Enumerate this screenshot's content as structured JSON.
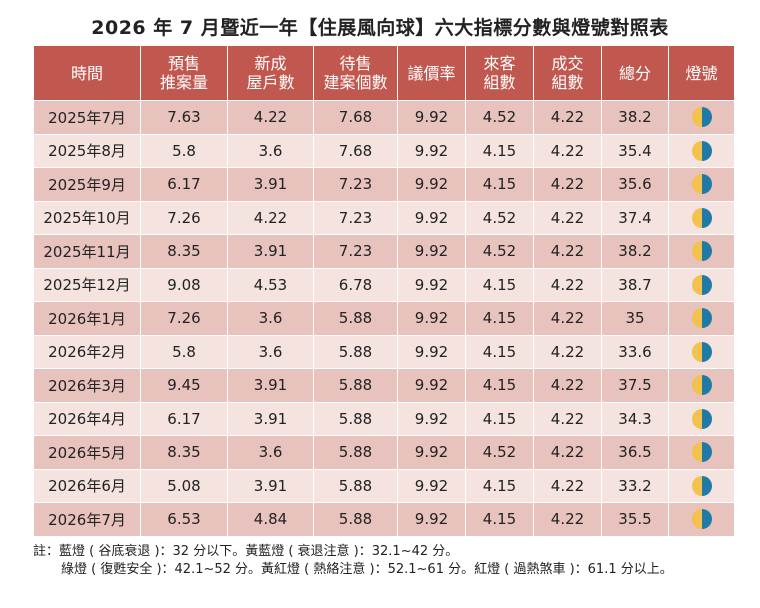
{
  "title": "2026 年 7 月暨近一年【住展風向球】六大指標分數與燈號對照表",
  "colors": {
    "header_bg": "#c1584f",
    "row_dark": "#e8c3bd",
    "row_light": "#f4e3df",
    "lamp_yellow": "#f2c14e",
    "lamp_blue": "#1f7ba6"
  },
  "columns": [
    {
      "line1": "時間",
      "line2": ""
    },
    {
      "line1": "預售",
      "line2": "推案量"
    },
    {
      "line1": "新成",
      "line2": "屋戶數"
    },
    {
      "line1": "待售",
      "line2": "建案個數"
    },
    {
      "line1": "議價率",
      "line2": ""
    },
    {
      "line1": "來客",
      "line2": "組數"
    },
    {
      "line1": "成交",
      "line2": "組數"
    },
    {
      "line1": "總分",
      "line2": ""
    },
    {
      "line1": "燈號",
      "line2": ""
    }
  ],
  "rows": [
    {
      "date": "2025年7月",
      "presale": "7.63",
      "new_units": "4.22",
      "pending": "7.68",
      "bargain": "9.92",
      "visitors": "4.52",
      "deals": "4.22",
      "total": "38.2",
      "lamp": "yellow-blue-icon"
    },
    {
      "date": "2025年8月",
      "presale": "5.8",
      "new_units": "3.6",
      "pending": "7.68",
      "bargain": "9.92",
      "visitors": "4.15",
      "deals": "4.22",
      "total": "35.4",
      "lamp": "yellow-blue-icon"
    },
    {
      "date": "2025年9月",
      "presale": "6.17",
      "new_units": "3.91",
      "pending": "7.23",
      "bargain": "9.92",
      "visitors": "4.15",
      "deals": "4.22",
      "total": "35.6",
      "lamp": "yellow-blue-icon"
    },
    {
      "date": "2025年10月",
      "presale": "7.26",
      "new_units": "4.22",
      "pending": "7.23",
      "bargain": "9.92",
      "visitors": "4.52",
      "deals": "4.22",
      "total": "37.4",
      "lamp": "yellow-blue-icon"
    },
    {
      "date": "2025年11月",
      "presale": "8.35",
      "new_units": "3.91",
      "pending": "7.23",
      "bargain": "9.92",
      "visitors": "4.52",
      "deals": "4.22",
      "total": "38.2",
      "lamp": "yellow-blue-icon"
    },
    {
      "date": "2025年12月",
      "presale": "9.08",
      "new_units": "4.53",
      "pending": "6.78",
      "bargain": "9.92",
      "visitors": "4.15",
      "deals": "4.22",
      "total": "38.7",
      "lamp": "yellow-blue-icon"
    },
    {
      "date": "2026年1月",
      "presale": "7.26",
      "new_units": "3.6",
      "pending": "5.88",
      "bargain": "9.92",
      "visitors": "4.15",
      "deals": "4.22",
      "total": "35",
      "lamp": "yellow-blue-icon"
    },
    {
      "date": "2026年2月",
      "presale": "5.8",
      "new_units": "3.6",
      "pending": "5.88",
      "bargain": "9.92",
      "visitors": "4.15",
      "deals": "4.22",
      "total": "33.6",
      "lamp": "yellow-blue-icon"
    },
    {
      "date": "2026年3月",
      "presale": "9.45",
      "new_units": "3.91",
      "pending": "5.88",
      "bargain": "9.92",
      "visitors": "4.15",
      "deals": "4.22",
      "total": "37.5",
      "lamp": "yellow-blue-icon"
    },
    {
      "date": "2026年4月",
      "presale": "6.17",
      "new_units": "3.91",
      "pending": "5.88",
      "bargain": "9.92",
      "visitors": "4.15",
      "deals": "4.22",
      "total": "34.3",
      "lamp": "yellow-blue-icon"
    },
    {
      "date": "2026年5月",
      "presale": "8.35",
      "new_units": "3.6",
      "pending": "5.88",
      "bargain": "9.92",
      "visitors": "4.52",
      "deals": "4.22",
      "total": "36.5",
      "lamp": "yellow-blue-icon"
    },
    {
      "date": "2026年6月",
      "presale": "5.08",
      "new_units": "3.91",
      "pending": "5.88",
      "bargain": "9.92",
      "visitors": "4.15",
      "deals": "4.22",
      "total": "33.2",
      "lamp": "yellow-blue-icon"
    },
    {
      "date": "2026年7月",
      "presale": "6.53",
      "new_units": "4.84",
      "pending": "5.88",
      "bargain": "9.92",
      "visitors": "4.15",
      "deals": "4.22",
      "total": "35.5",
      "lamp": "yellow-blue-icon"
    }
  ],
  "notes": {
    "line1": "註：藍燈 ( 谷底衰退 )：32 分以下。黃藍燈 ( 衰退注意 )：32.1~42 分。",
    "line2": "綠燈 ( 復甦安全 )：42.1~52 分。黃紅燈 ( 熱絡注意 )：52.1~61 分。紅燈 ( 過熱煞車 )：61.1 分以上。"
  }
}
